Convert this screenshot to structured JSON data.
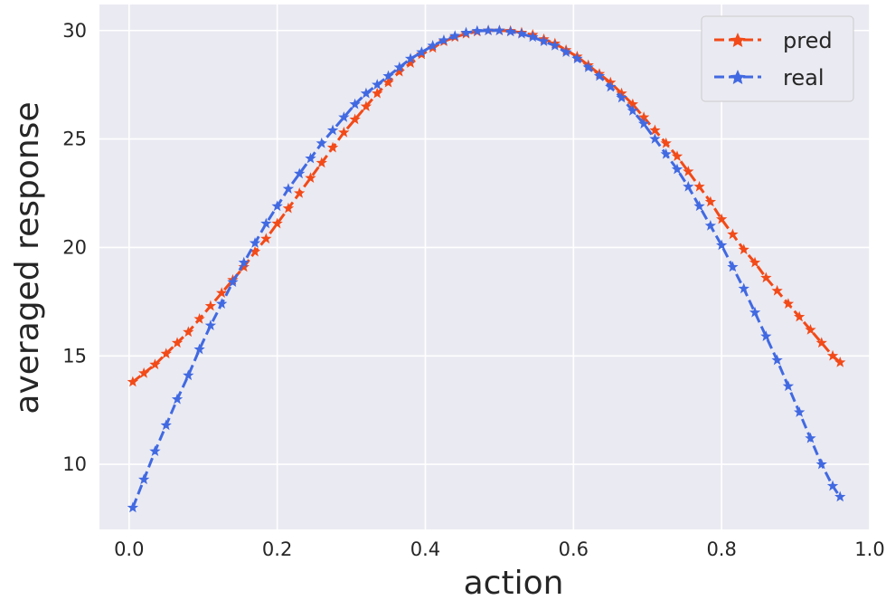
{
  "chart_data": {
    "type": "line",
    "title": "",
    "xlabel": "action",
    "ylabel": "averaged response",
    "xlim": [
      -0.04,
      1.0
    ],
    "ylim": [
      7.0,
      31.2
    ],
    "xticks": [
      0.0,
      0.2,
      0.4,
      0.6,
      0.8,
      1.0
    ],
    "xtick_labels": [
      "0.0",
      "0.2",
      "0.4",
      "0.6",
      "0.8",
      "1.0"
    ],
    "yticks": [
      10,
      15,
      20,
      25,
      30
    ],
    "ytick_labels": [
      "10",
      "15",
      "20",
      "25",
      "30"
    ],
    "grid": true,
    "legend_position": "top-right",
    "series": [
      {
        "name": "pred",
        "color": "#f24a18",
        "line_style": "dashed",
        "marker": "star",
        "x": [
          0.005,
          0.02,
          0.035,
          0.05,
          0.065,
          0.08,
          0.095,
          0.11,
          0.125,
          0.14,
          0.155,
          0.17,
          0.185,
          0.2,
          0.215,
          0.23,
          0.245,
          0.26,
          0.275,
          0.29,
          0.305,
          0.32,
          0.335,
          0.35,
          0.365,
          0.38,
          0.395,
          0.41,
          0.425,
          0.44,
          0.455,
          0.47,
          0.485,
          0.5,
          0.515,
          0.53,
          0.545,
          0.56,
          0.575,
          0.59,
          0.605,
          0.62,
          0.635,
          0.65,
          0.665,
          0.68,
          0.695,
          0.71,
          0.725,
          0.74,
          0.755,
          0.77,
          0.785,
          0.8,
          0.815,
          0.83,
          0.845,
          0.86,
          0.875,
          0.89,
          0.905,
          0.92,
          0.935,
          0.95,
          0.96
        ],
        "y": [
          13.8,
          14.2,
          14.6,
          15.1,
          15.6,
          16.1,
          16.7,
          17.3,
          17.9,
          18.5,
          19.1,
          19.8,
          20.4,
          21.1,
          21.8,
          22.5,
          23.2,
          23.9,
          24.6,
          25.3,
          25.9,
          26.5,
          27.1,
          27.6,
          28.1,
          28.5,
          28.9,
          29.2,
          29.5,
          29.7,
          29.85,
          29.95,
          30.0,
          30.0,
          29.98,
          29.9,
          29.8,
          29.6,
          29.4,
          29.1,
          28.8,
          28.4,
          28.0,
          27.6,
          27.1,
          26.6,
          26.0,
          25.4,
          24.8,
          24.2,
          23.5,
          22.8,
          22.1,
          21.3,
          20.6,
          19.9,
          19.3,
          18.6,
          18.0,
          17.4,
          16.8,
          16.2,
          15.6,
          15.0,
          14.7
        ]
      },
      {
        "name": "real",
        "color": "#4169e1",
        "line_style": "dashed",
        "marker": "star",
        "x": [
          0.005,
          0.02,
          0.035,
          0.05,
          0.065,
          0.08,
          0.095,
          0.11,
          0.125,
          0.14,
          0.155,
          0.17,
          0.185,
          0.2,
          0.215,
          0.23,
          0.245,
          0.26,
          0.275,
          0.29,
          0.305,
          0.32,
          0.335,
          0.35,
          0.365,
          0.38,
          0.395,
          0.41,
          0.425,
          0.44,
          0.455,
          0.47,
          0.485,
          0.5,
          0.515,
          0.53,
          0.545,
          0.56,
          0.575,
          0.59,
          0.605,
          0.62,
          0.635,
          0.65,
          0.665,
          0.68,
          0.695,
          0.71,
          0.725,
          0.74,
          0.755,
          0.77,
          0.785,
          0.8,
          0.815,
          0.83,
          0.845,
          0.86,
          0.875,
          0.89,
          0.905,
          0.92,
          0.935,
          0.95,
          0.96
        ],
        "y": [
          8.0,
          9.3,
          10.6,
          11.8,
          13.0,
          14.1,
          15.3,
          16.4,
          17.4,
          18.4,
          19.3,
          20.2,
          21.1,
          21.9,
          22.7,
          23.4,
          24.1,
          24.8,
          25.4,
          26.0,
          26.6,
          27.1,
          27.5,
          27.9,
          28.3,
          28.7,
          29.0,
          29.3,
          29.55,
          29.75,
          29.9,
          29.98,
          30.0,
          30.0,
          29.95,
          29.85,
          29.7,
          29.5,
          29.3,
          29.0,
          28.7,
          28.3,
          27.9,
          27.4,
          26.9,
          26.3,
          25.7,
          25.0,
          24.3,
          23.6,
          22.8,
          21.9,
          21.0,
          20.1,
          19.1,
          18.1,
          17.0,
          15.9,
          14.8,
          13.6,
          12.4,
          11.2,
          10.0,
          9.0,
          8.5
        ]
      }
    ]
  }
}
